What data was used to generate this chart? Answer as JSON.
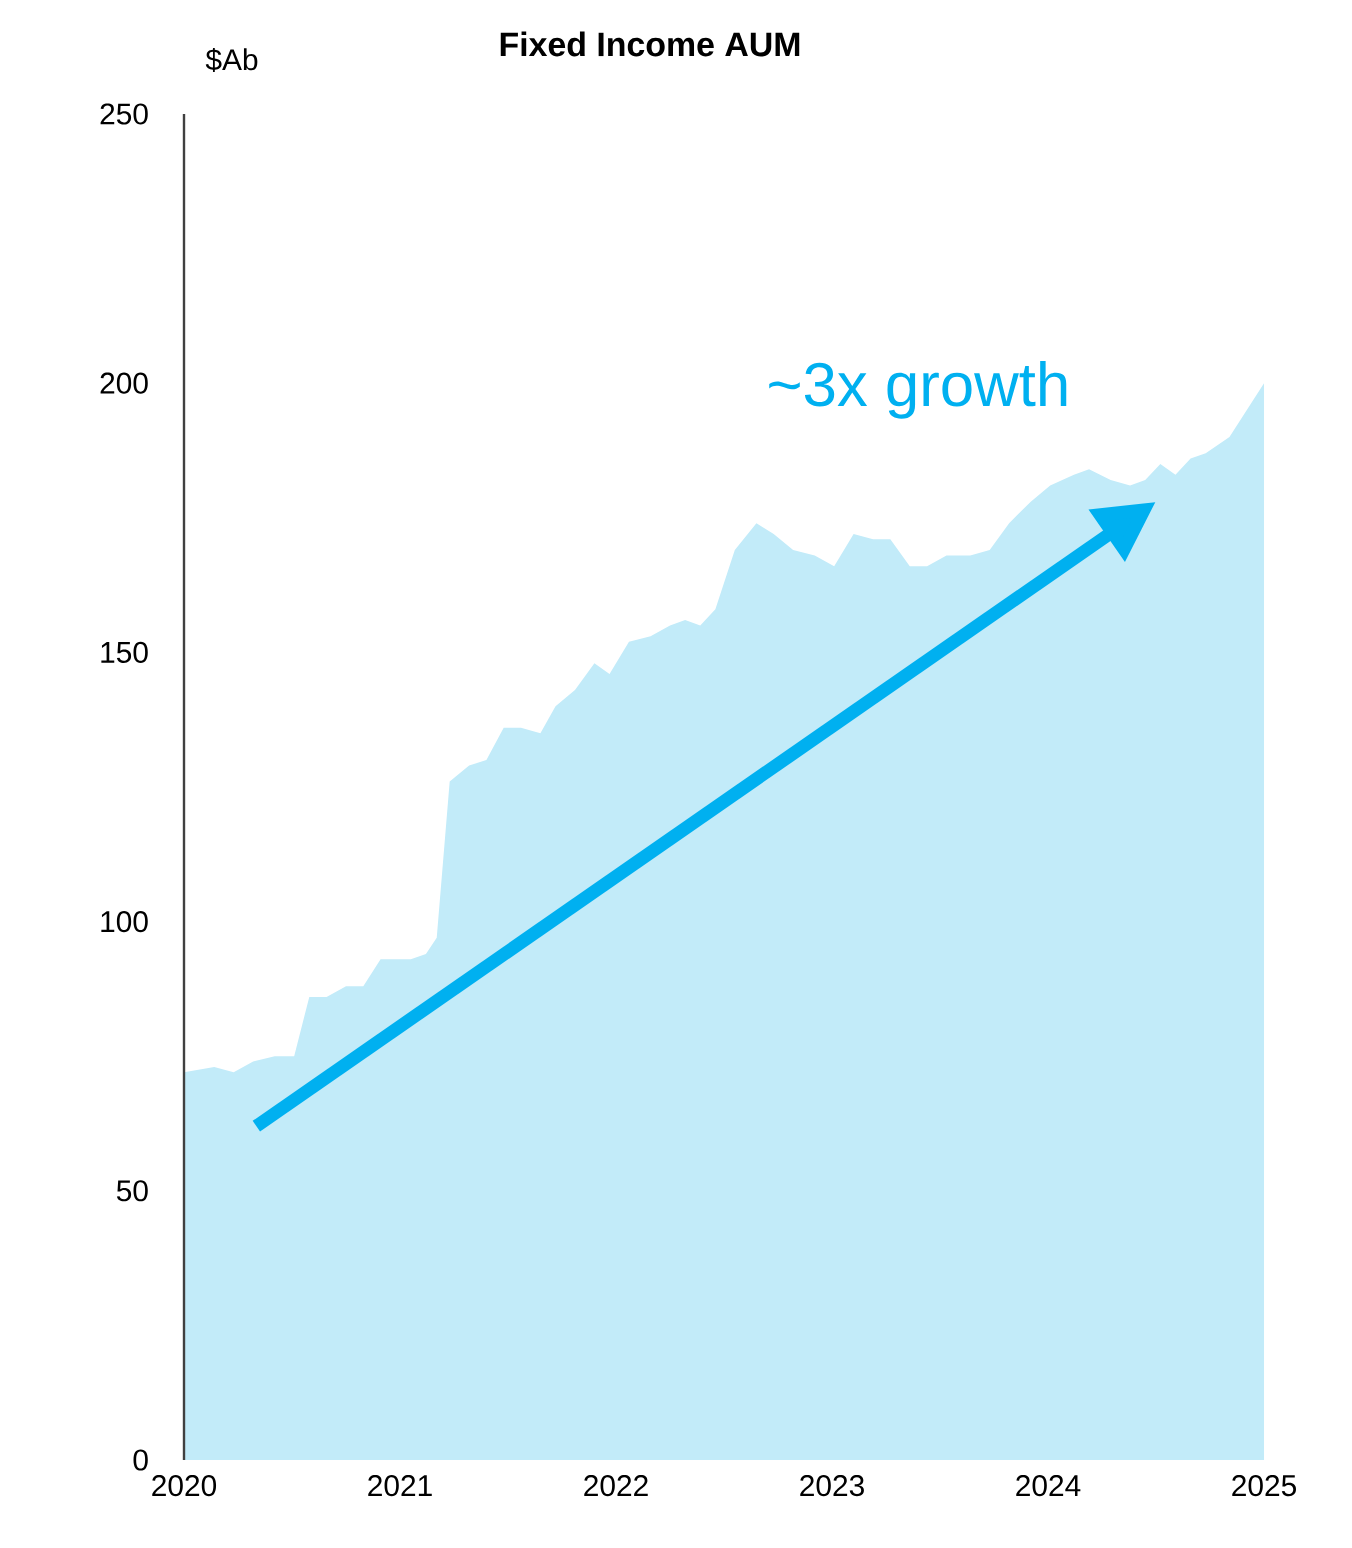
{
  "chart_data": {
    "type": "area",
    "title": "Fixed Income AUM",
    "ylabel": "$Ab",
    "x": [
      2020.0,
      2020.14,
      2020.23,
      2020.32,
      2020.42,
      2020.51,
      2020.58,
      2020.66,
      2020.75,
      2020.83,
      2020.91,
      2020.97,
      2021.05,
      2021.12,
      2021.17,
      2021.23,
      2021.32,
      2021.4,
      2021.48,
      2021.56,
      2021.65,
      2021.72,
      2021.81,
      2021.9,
      2021.97,
      2022.06,
      2022.16,
      2022.25,
      2022.32,
      2022.39,
      2022.46,
      2022.55,
      2022.65,
      2022.73,
      2022.82,
      2022.92,
      2023.01,
      2023.1,
      2023.19,
      2023.27,
      2023.36,
      2023.44,
      2023.53,
      2023.64,
      2023.73,
      2023.82,
      2023.92,
      2024.01,
      2024.12,
      2024.19,
      2024.29,
      2024.38,
      2024.45,
      2024.52,
      2024.59,
      2024.66,
      2024.73,
      2024.84,
      2025.0
    ],
    "values": [
      72,
      73,
      72,
      74,
      75,
      75,
      86,
      86,
      88,
      88,
      93,
      93,
      93,
      94,
      97,
      126,
      129,
      130,
      136,
      136,
      135,
      140,
      143,
      148,
      146,
      152,
      153,
      155,
      156,
      155,
      158,
      169,
      174,
      172,
      169,
      168,
      166,
      172,
      171,
      171,
      166,
      166,
      168,
      168,
      169,
      174,
      178,
      181,
      183,
      184,
      182,
      181,
      182,
      185,
      183,
      186,
      187,
      190,
      200
    ],
    "color": "#c2ebf9",
    "xlim": [
      2020,
      2025
    ],
    "ylim": [
      0,
      250
    ],
    "xticks": [
      2020,
      2021,
      2022,
      2023,
      2024,
      2025
    ],
    "yticks": [
      0,
      50,
      100,
      150,
      200,
      250
    ],
    "annotations": [
      "~3x growth"
    ]
  }
}
